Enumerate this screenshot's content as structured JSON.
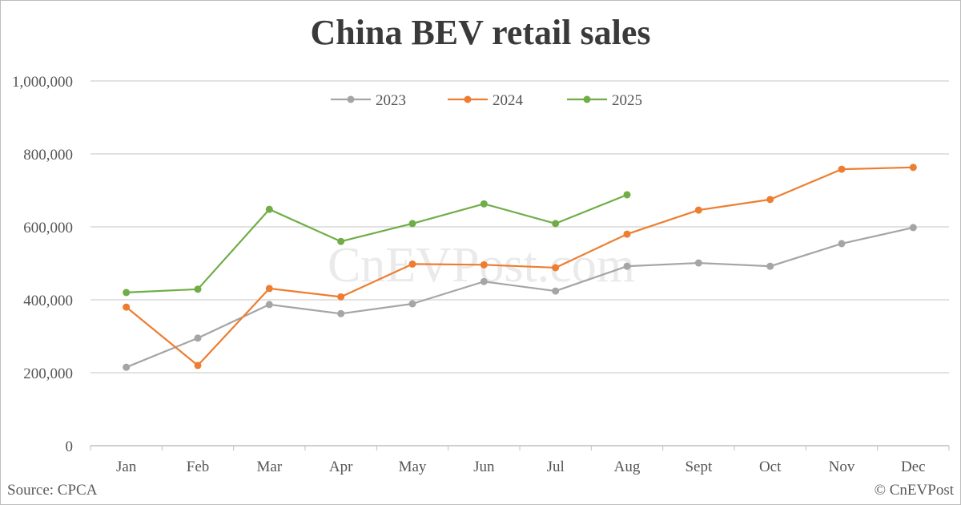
{
  "title": "China BEV retail sales",
  "watermark": "CnEVPost.com",
  "footer": {
    "source": "Source: CPCA",
    "credit": "© CnEVPost"
  },
  "legend": [
    {
      "label": "2023",
      "color": "#a5a5a5"
    },
    {
      "label": "2024",
      "color": "#ed7d31"
    },
    {
      "label": "2025",
      "color": "#70ad47"
    }
  ],
  "chart_data": {
    "type": "line",
    "title": "China BEV retail sales",
    "xlabel": "",
    "ylabel": "",
    "ylim": [
      0,
      1000000
    ],
    "yticks": [
      0,
      200000,
      400000,
      600000,
      800000,
      1000000
    ],
    "ytick_labels": [
      "0",
      "200,000",
      "400,000",
      "600,000",
      "800,000",
      "1,000,000"
    ],
    "grid": "horizontal",
    "legend_position": "top",
    "categories": [
      "Jan",
      "Feb",
      "Mar",
      "Apr",
      "May",
      "Jun",
      "Jul",
      "Aug",
      "Sept",
      "Oct",
      "Nov",
      "Dec"
    ],
    "series": [
      {
        "name": "2023",
        "color": "#a5a5a5",
        "values": [
          215000,
          295000,
          387000,
          362000,
          389000,
          450000,
          424000,
          492000,
          501000,
          492000,
          554000,
          598000
        ]
      },
      {
        "name": "2024",
        "color": "#ed7d31",
        "values": [
          380000,
          220000,
          431000,
          408000,
          498000,
          496000,
          488000,
          580000,
          646000,
          675000,
          758000,
          763000
        ]
      },
      {
        "name": "2025",
        "color": "#70ad47",
        "values": [
          420000,
          429000,
          648000,
          560000,
          609000,
          663000,
          609000,
          688000,
          null,
          null,
          null,
          null
        ]
      }
    ],
    "annotations": [
      "Source: CPCA",
      "© CnEVPost",
      "CnEVPost.com (watermark)"
    ]
  }
}
